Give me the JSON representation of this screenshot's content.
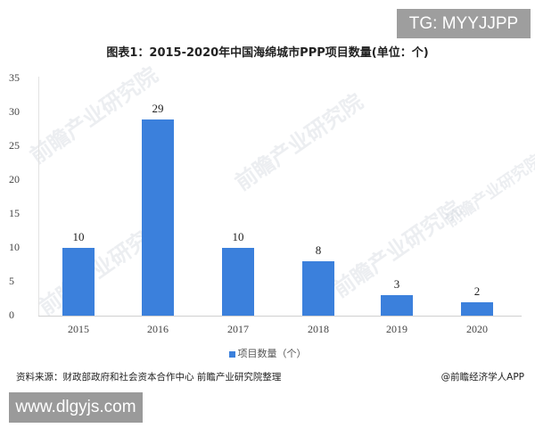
{
  "badges": {
    "top_right": "TG: MYYJJPP",
    "bottom_left": "www.dlgyjs.com"
  },
  "watermark_text": "前瞻产业研究院",
  "chart_data": {
    "type": "bar",
    "title": "图表1：2015-2020年中国海绵城市PPP项目数量(单位：个)",
    "categories": [
      "2015",
      "2016",
      "2017",
      "2018",
      "2019",
      "2020"
    ],
    "series": [
      {
        "name": "项目数量（个）",
        "values": [
          10,
          29,
          10,
          8,
          3,
          2
        ],
        "color": "#3b80dc"
      }
    ],
    "values": [
      10,
      29,
      10,
      8,
      3,
      2
    ],
    "xlabel": "",
    "ylabel": "",
    "ylim": [
      0,
      35
    ],
    "yticks": [
      "0",
      "5",
      "10",
      "15",
      "20",
      "25",
      "30",
      "35"
    ],
    "grid": false,
    "legend_position": "bottom",
    "data_labels": [
      "10",
      "29",
      "10",
      "8",
      "3",
      "2"
    ]
  },
  "footer": {
    "source": "资料来源：财政部政府和社会资本合作中心 前瞻产业研究院整理",
    "credit": "@前瞻经济学人APP"
  }
}
